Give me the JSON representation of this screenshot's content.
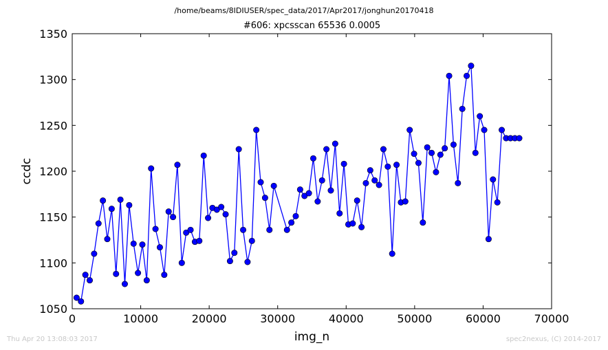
{
  "header": {
    "path": "/home/beams/8IDIUSER/spec_data/2017/Apr2017/jonghun20170418",
    "scan": "#606: xpcsscan 65536 0.0005"
  },
  "footer": {
    "timestamp": "Thu Apr 20 13:08:03 2017",
    "credit": "spec2nexus, (C) 2014-2017"
  },
  "chart_data": {
    "type": "line",
    "title": "#606: xpcsscan 65536 0.0005",
    "xlabel": "img_n",
    "ylabel": "ccdc",
    "xlim": [
      0,
      70000
    ],
    "ylim": [
      1050,
      1350
    ],
    "xticks": [
      "0",
      "10000",
      "20000",
      "30000",
      "40000",
      "50000",
      "60000",
      "70000"
    ],
    "yticks": [
      "1050",
      "1100",
      "1150",
      "1200",
      "1250",
      "1300",
      "1350"
    ],
    "grid": false,
    "marker": "circle",
    "color": "#0000ff",
    "series": [
      {
        "x": [
          640,
          1280,
          1920,
          2560,
          3200,
          3840,
          4480,
          5120,
          5760,
          6400,
          7040,
          7680,
          8320,
          8960,
          9600,
          10240,
          10880,
          11520,
          12160,
          12800,
          13440,
          14080,
          14720,
          15360,
          16000,
          16640,
          17280,
          17920,
          18560,
          19200,
          19840,
          20480,
          21120,
          21760,
          22400,
          23040,
          23680,
          24320,
          24960,
          25600,
          26240,
          26880,
          27520,
          28160,
          28800,
          29440,
          31360,
          32000,
          32640,
          33280,
          33920,
          34560,
          35200,
          35840,
          36480,
          37120,
          37760,
          38400,
          39040,
          39680,
          40320,
          40960,
          41600,
          42240,
          42880,
          43520,
          44160,
          44800,
          45440,
          46080,
          46720,
          47360,
          48000,
          48640,
          49280,
          49920,
          50560,
          51200,
          51840,
          52480,
          53120,
          53760,
          54400,
          55040,
          55680,
          56320,
          56960,
          57600,
          58240,
          58880,
          59520,
          60160,
          60800,
          61440,
          62080,
          62720,
          63360,
          64000,
          64640,
          65280
        ],
        "y": [
          1062,
          1058,
          1087,
          1081,
          1110,
          1143,
          1168,
          1126,
          1159,
          1088,
          1169,
          1077,
          1163,
          1121,
          1089,
          1120,
          1081,
          1203,
          1137,
          1117,
          1087,
          1156,
          1150,
          1207,
          1100,
          1133,
          1136,
          1123,
          1124,
          1217,
          1149,
          1160,
          1158,
          1161,
          1153,
          1102,
          1111,
          1224,
          1136,
          1101,
          1124,
          1245,
          1188,
          1171,
          1136,
          1184,
          1136,
          1144,
          1151,
          1180,
          1173,
          1176,
          1214,
          1167,
          1190,
          1224,
          1179,
          1230,
          1154,
          1208,
          1142,
          1143,
          1168,
          1139,
          1187,
          1201,
          1190,
          1185,
          1224,
          1205,
          1110,
          1207,
          1166,
          1167,
          1245,
          1219,
          1209,
          1144,
          1226,
          1220,
          1199,
          1218,
          1225,
          1304,
          1229,
          1187,
          1268,
          1304,
          1315,
          1220,
          1260,
          1245,
          1126,
          1191,
          1166,
          1245,
          1236,
          1236,
          1236,
          1236
        ]
      }
    ]
  }
}
